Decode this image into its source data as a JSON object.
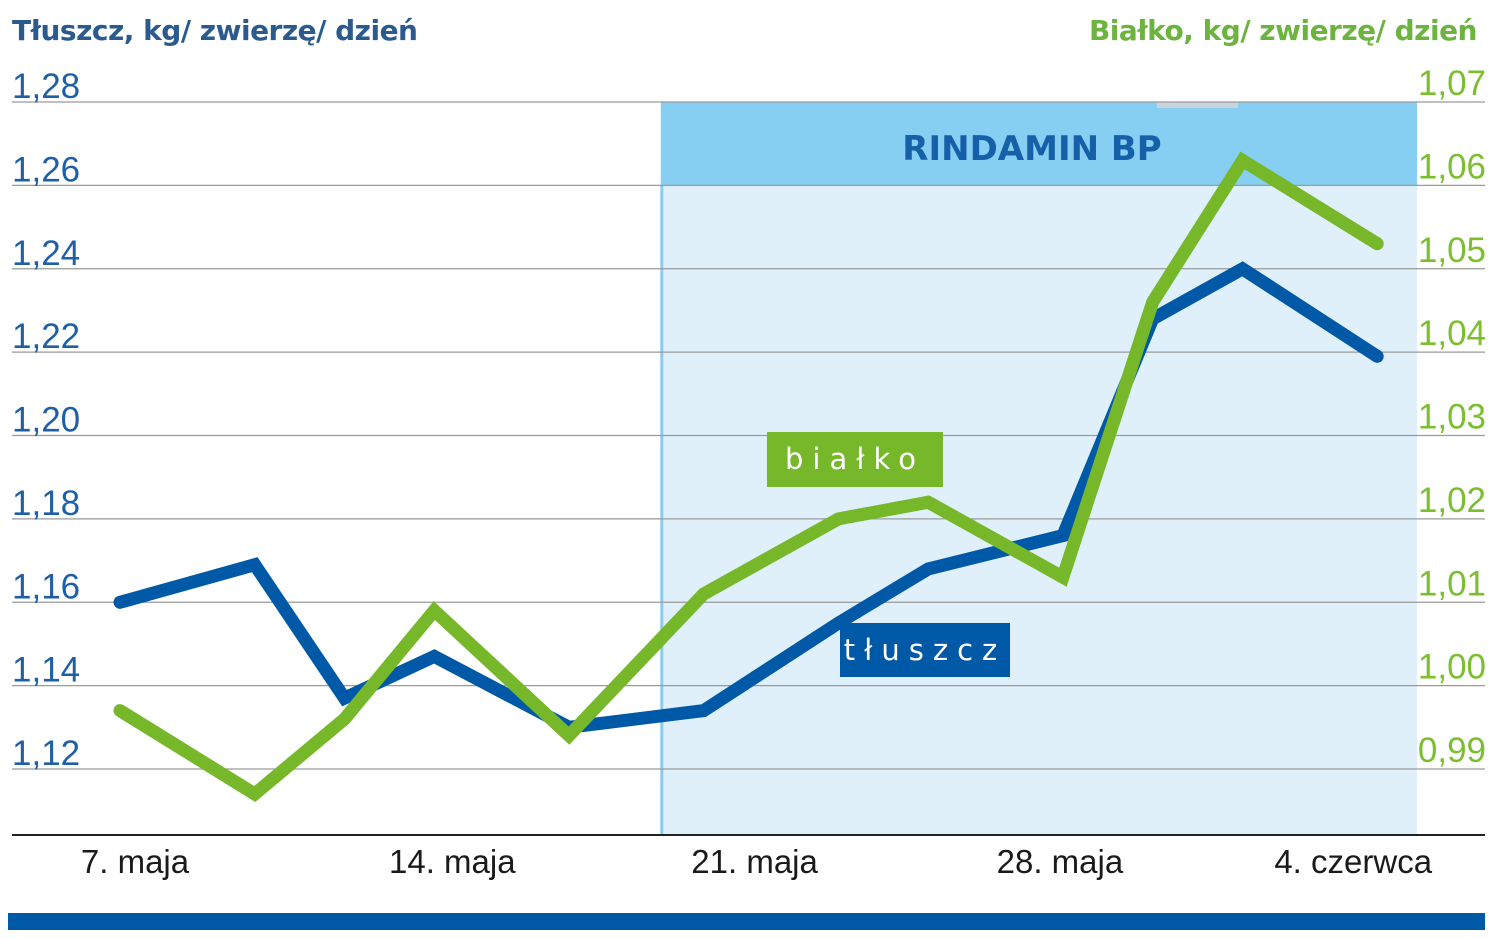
{
  "chart_data": {
    "type": "line",
    "ylabel_left": "Tłuszcz, kg/ zwierzę/ dzień",
    "ylabel_right": "Białko, kg/ zwierzę/ dzień",
    "x_tick_labels": [
      "7. maja",
      "14. maja",
      "21. maja",
      "28. maja",
      "4. czerwca"
    ],
    "x_tick_dates": [
      "05-07",
      "05-14",
      "05-21",
      "05-28",
      "06-04"
    ],
    "x": [
      "05-07",
      "05-10",
      "05-12",
      "05-14",
      "05-17",
      "05-20",
      "05-23",
      "05-25",
      "05-28",
      "05-30",
      "06-01",
      "06-04"
    ],
    "ylim_left": [
      1.12,
      1.28
    ],
    "yticks_left": [
      "1,12",
      "1,14",
      "1,16",
      "1,18",
      "1,20",
      "1,22",
      "1,24",
      "1,26",
      "1,28"
    ],
    "ylim_right": [
      0.99,
      1.07
    ],
    "yticks_right": [
      "0,99",
      "1,00",
      "1,01",
      "1,02",
      "1,03",
      "1,04",
      "1,05",
      "1,06",
      "1,07"
    ],
    "grid": true,
    "series": [
      {
        "name": "tłuszcz",
        "axis": "left",
        "color": "#0059a6",
        "values": [
          1.16,
          1.169,
          1.137,
          1.147,
          1.13,
          1.134,
          1.155,
          1.168,
          1.176,
          1.228,
          1.24,
          1.219
        ]
      },
      {
        "name": "białko",
        "axis": "right",
        "color": "#76b82a",
        "values": [
          0.997,
          0.987,
          0.996,
          1.009,
          0.994,
          1.011,
          1.02,
          1.022,
          1.013,
          1.046,
          1.063,
          1.053
        ]
      }
    ],
    "shaded_region": {
      "label": "RINDAMIN BP",
      "from": "05-19",
      "to": "06-05",
      "header_color": "#86cff3",
      "fill_color": "#dff0fb"
    }
  },
  "footer_bar_color": "#0059a6"
}
